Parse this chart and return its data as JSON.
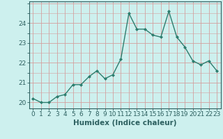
{
  "xlabel": "Humidex (Indice chaleur)",
  "x": [
    0,
    1,
    2,
    3,
    4,
    5,
    6,
    7,
    8,
    9,
    10,
    11,
    12,
    13,
    14,
    15,
    16,
    17,
    18,
    19,
    20,
    21,
    22,
    23
  ],
  "y": [
    20.2,
    20.0,
    20.0,
    20.3,
    20.4,
    20.9,
    20.9,
    21.3,
    21.6,
    21.2,
    21.4,
    22.2,
    24.5,
    23.7,
    23.7,
    23.4,
    23.3,
    24.6,
    23.3,
    22.8,
    22.1,
    21.9,
    22.1,
    21.6
  ],
  "line_color": "#2d7d6e",
  "marker": "D",
  "markersize": 2.0,
  "linewidth": 1.0,
  "ylim": [
    19.7,
    25.1
  ],
  "yticks": [
    20,
    21,
    22,
    23,
    24
  ],
  "xticks": [
    0,
    1,
    2,
    3,
    4,
    5,
    6,
    7,
    8,
    9,
    10,
    11,
    12,
    13,
    14,
    15,
    16,
    17,
    18,
    19,
    20,
    21,
    22,
    23
  ],
  "bg_color": "#cdf0ee",
  "grid_color": "#d4a0a0",
  "tick_color": "#2d6060",
  "label_color": "#2d6060",
  "xlabel_fontsize": 7.5,
  "tick_fontsize": 6.5
}
